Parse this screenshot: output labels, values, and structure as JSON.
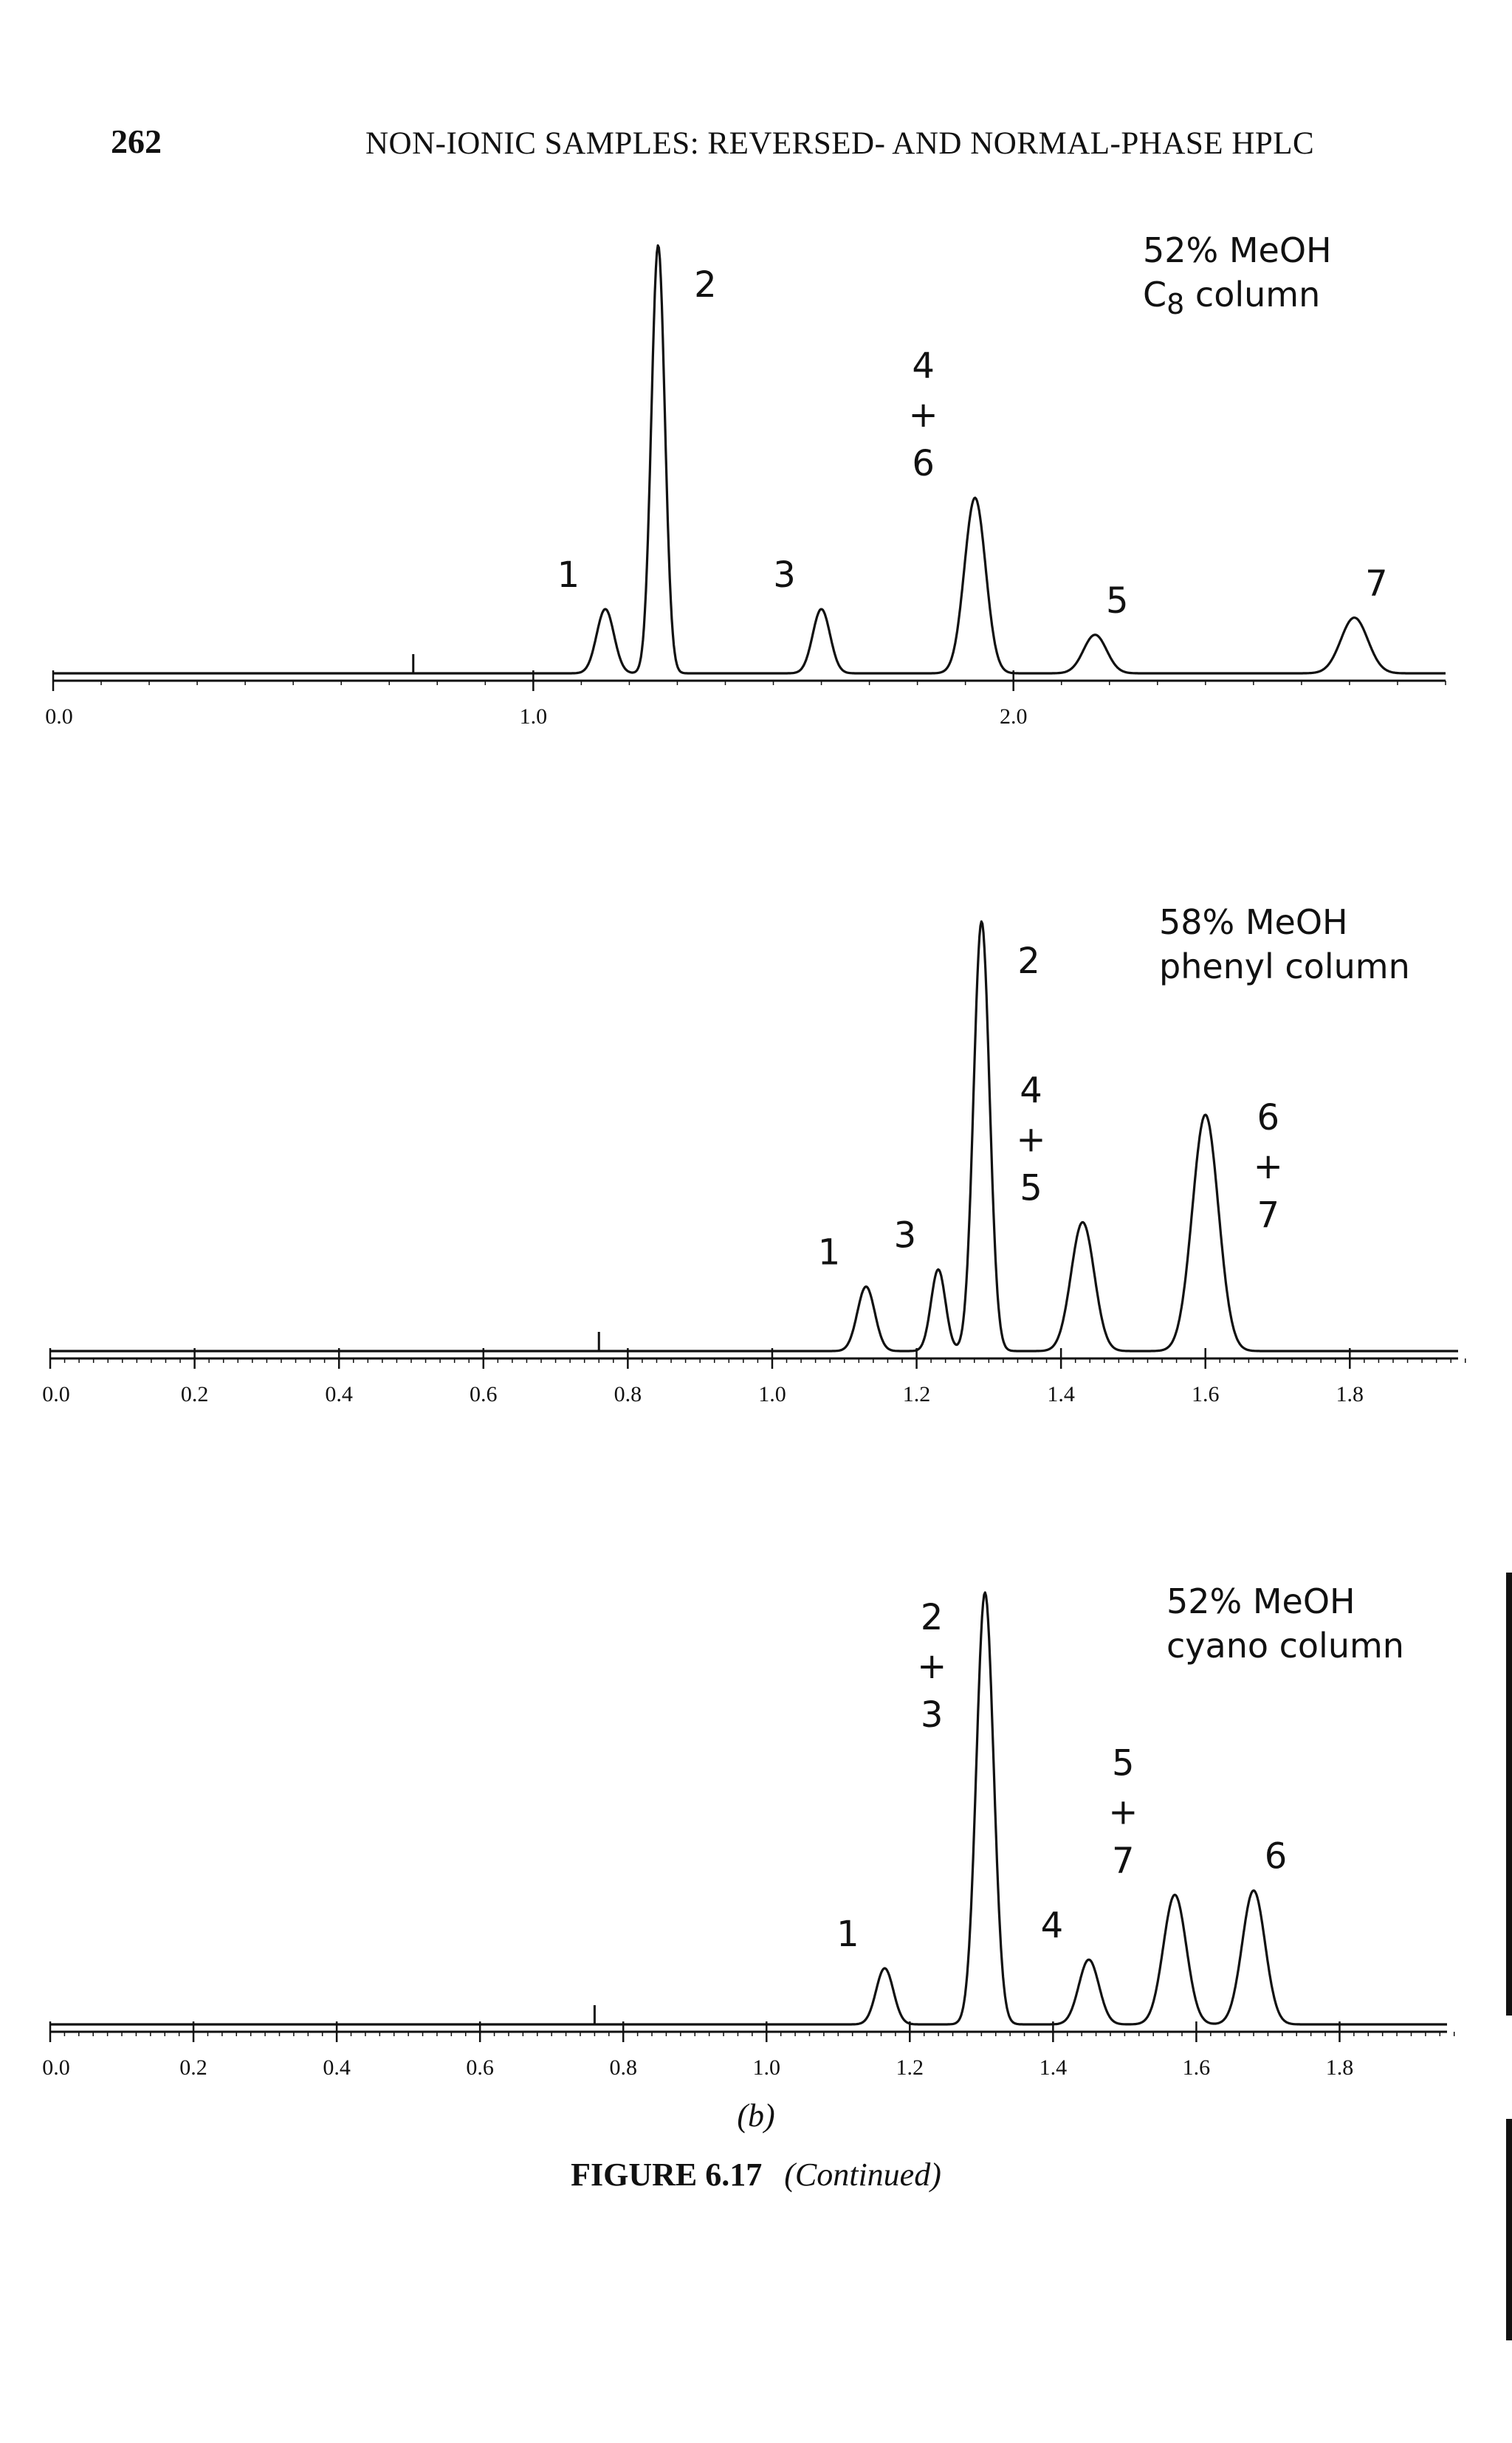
{
  "header": {
    "page_number": "262",
    "running_head": "NON-IONIC SAMPLES: REVERSED- AND NORMAL-PHASE HPLC"
  },
  "figure": {
    "sub_label": "(b)",
    "number": "FIGURE 6.17",
    "note": "(Continued)"
  },
  "colors": {
    "ink": "#111111"
  },
  "chart_data": [
    {
      "type": "line",
      "condition_lines": [
        "52% MeOH",
        "C8 column"
      ],
      "x_range": [
        0.0,
        2.9
      ],
      "x_ticks": [
        0.0,
        1.0,
        2.0
      ],
      "x_tick_labels": [
        "0.0",
        "1.0",
        "2.0"
      ],
      "x_minor_step": 0.1,
      "injection_marker_x": 0.75,
      "peaks": [
        {
          "label": [
            "1"
          ],
          "rt": 1.15,
          "height": 0.15,
          "width": 0.018
        },
        {
          "label": [
            "2"
          ],
          "rt": 1.26,
          "height": 1.0,
          "width": 0.014
        },
        {
          "label": [
            "3"
          ],
          "rt": 1.6,
          "height": 0.15,
          "width": 0.018
        },
        {
          "label": [
            "4",
            "+",
            "6"
          ],
          "rt": 1.92,
          "height": 0.41,
          "width": 0.022
        },
        {
          "label": [
            "5"
          ],
          "rt": 2.17,
          "height": 0.09,
          "width": 0.024
        },
        {
          "label": [
            "7"
          ],
          "rt": 2.71,
          "height": 0.13,
          "width": 0.028
        }
      ]
    },
    {
      "type": "line",
      "condition_lines": [
        "58% MeOH",
        "phenyl column"
      ],
      "x_range": [
        0.0,
        1.95
      ],
      "x_ticks": [
        0.0,
        0.2,
        0.4,
        0.6,
        0.8,
        1.0,
        1.2,
        1.4,
        1.6,
        1.8
      ],
      "x_tick_labels": [
        "0.0",
        "0.2",
        "0.4",
        "0.6",
        "0.8",
        "1.0",
        "1.2",
        "1.4",
        "1.6",
        "1.8"
      ],
      "x_minor_step": 0.02,
      "injection_marker_x": 0.76,
      "peaks": [
        {
          "label": [
            "1"
          ],
          "rt": 1.13,
          "height": 0.15,
          "width": 0.012
        },
        {
          "label": [
            "3"
          ],
          "rt": 1.23,
          "height": 0.19,
          "width": 0.01
        },
        {
          "label": [
            "2"
          ],
          "rt": 1.29,
          "height": 1.0,
          "width": 0.011
        },
        {
          "label": [
            "4",
            "+",
            "5"
          ],
          "rt": 1.43,
          "height": 0.3,
          "width": 0.016
        },
        {
          "label": [
            "6",
            "+",
            "7"
          ],
          "rt": 1.6,
          "height": 0.55,
          "width": 0.018
        }
      ]
    },
    {
      "type": "line",
      "condition_lines": [
        "52% MeOH",
        "cyano column"
      ],
      "x_range": [
        0.0,
        1.95
      ],
      "x_ticks": [
        0.0,
        0.2,
        0.4,
        0.6,
        0.8,
        1.0,
        1.2,
        1.4,
        1.6,
        1.8
      ],
      "x_tick_labels": [
        "0.0",
        "0.2",
        "0.4",
        "0.6",
        "0.8",
        "1.0",
        "1.2",
        "1.4",
        "1.6",
        "1.8"
      ],
      "x_minor_step": 0.02,
      "injection_marker_x": 0.76,
      "peaks": [
        {
          "label": [
            "1"
          ],
          "rt": 1.165,
          "height": 0.13,
          "width": 0.012
        },
        {
          "label": [
            "2",
            "+",
            "3"
          ],
          "rt": 1.305,
          "height": 1.0,
          "width": 0.012
        },
        {
          "label": [
            "4"
          ],
          "rt": 1.45,
          "height": 0.15,
          "width": 0.014
        },
        {
          "label": [
            "5",
            "+",
            "7"
          ],
          "rt": 1.57,
          "height": 0.3,
          "width": 0.016
        },
        {
          "label": [
            "6"
          ],
          "rt": 1.68,
          "height": 0.31,
          "width": 0.016
        }
      ]
    }
  ]
}
